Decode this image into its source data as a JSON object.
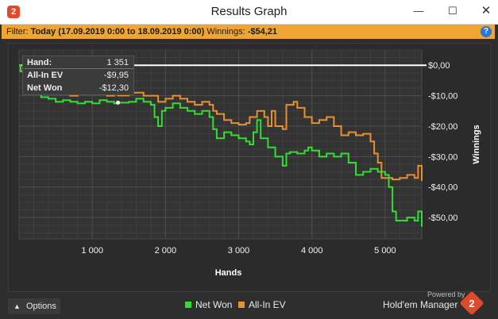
{
  "window": {
    "title": "Results Graph",
    "app_icon_glyph": "2",
    "controls": {
      "minimize": "—",
      "maximize": "☐",
      "close": "✕"
    }
  },
  "filter_bar": {
    "filter_label": "Filter:",
    "filter_value": "Today (17.09.2019 0:00 to 18.09.2019 0:00)",
    "winnings_label": "Winnings:",
    "winnings_value": "-$54,21",
    "help_glyph": "?"
  },
  "tooltip": {
    "hand_label": "Hand:",
    "hand_value": "1 351",
    "allin_label": "All-In EV",
    "allin_value": "-$9,95",
    "net_label": "Net Won",
    "net_value": "-$12,30"
  },
  "chart_data": {
    "type": "line",
    "xlabel": "Hands",
    "ylabel": "Winnings",
    "xlim": [
      0,
      5500
    ],
    "ylim": [
      -57,
      5
    ],
    "x_ticks": [
      1000,
      2000,
      3000,
      4000,
      5000
    ],
    "x_tick_labels": [
      "1 000",
      "2 000",
      "3 000",
      "4 000",
      "5 000"
    ],
    "y_ticks": [
      0,
      -10,
      -20,
      -30,
      -40,
      -50
    ],
    "y_tick_labels": [
      "$0,00",
      "-$10,00",
      "-$20,00",
      "-$30,00",
      "-$40,00",
      "-$50,00"
    ],
    "grid": true,
    "legend": "bottom-center",
    "series": [
      {
        "name": "Net Won",
        "color": "#33dd33",
        "points": [
          [
            0,
            0
          ],
          [
            20,
            -2
          ],
          [
            60,
            -5
          ],
          [
            100,
            -8
          ],
          [
            200,
            -9
          ],
          [
            300,
            -10.5
          ],
          [
            400,
            -11
          ],
          [
            500,
            -12
          ],
          [
            600,
            -11.5
          ],
          [
            700,
            -12
          ],
          [
            800,
            -12.5
          ],
          [
            900,
            -12
          ],
          [
            1000,
            -12.5
          ],
          [
            1100,
            -11.5
          ],
          [
            1200,
            -12
          ],
          [
            1300,
            -12.5
          ],
          [
            1351,
            -12.3
          ],
          [
            1500,
            -12
          ],
          [
            1600,
            -11
          ],
          [
            1700,
            -12
          ],
          [
            1800,
            -13
          ],
          [
            1850,
            -17
          ],
          [
            1900,
            -20
          ],
          [
            1950,
            -15
          ],
          [
            2000,
            -14
          ],
          [
            2100,
            -12.5
          ],
          [
            2200,
            -14
          ],
          [
            2300,
            -15
          ],
          [
            2400,
            -16
          ],
          [
            2500,
            -15
          ],
          [
            2600,
            -17
          ],
          [
            2650,
            -21
          ],
          [
            2700,
            -24
          ],
          [
            2800,
            -22
          ],
          [
            2900,
            -23
          ],
          [
            3000,
            -24
          ],
          [
            3100,
            -25
          ],
          [
            3150,
            -26
          ],
          [
            3200,
            -22
          ],
          [
            3250,
            -18
          ],
          [
            3300,
            -24
          ],
          [
            3400,
            -27
          ],
          [
            3500,
            -30
          ],
          [
            3600,
            -33
          ],
          [
            3650,
            -29
          ],
          [
            3700,
            -28.5
          ],
          [
            3800,
            -29
          ],
          [
            3900,
            -28
          ],
          [
            3950,
            -27
          ],
          [
            4000,
            -28
          ],
          [
            4100,
            -30
          ],
          [
            4200,
            -29
          ],
          [
            4300,
            -30
          ],
          [
            4400,
            -29
          ],
          [
            4500,
            -32
          ],
          [
            4600,
            -36
          ],
          [
            4700,
            -35
          ],
          [
            4800,
            -34
          ],
          [
            4900,
            -35
          ],
          [
            5000,
            -36
          ],
          [
            5050,
            -40
          ],
          [
            5100,
            -48
          ],
          [
            5150,
            -51
          ],
          [
            5200,
            -51
          ],
          [
            5300,
            -50
          ],
          [
            5400,
            -51
          ],
          [
            5450,
            -48
          ],
          [
            5500,
            -53
          ]
        ]
      },
      {
        "name": "All-In EV",
        "color": "#e8902f",
        "points": [
          [
            0,
            0
          ],
          [
            20,
            -2
          ],
          [
            60,
            -5
          ],
          [
            100,
            -7
          ],
          [
            200,
            -8
          ],
          [
            300,
            -9
          ],
          [
            400,
            -9
          ],
          [
            500,
            -9.5
          ],
          [
            600,
            -9
          ],
          [
            700,
            -10
          ],
          [
            800,
            -9.5
          ],
          [
            900,
            -9
          ],
          [
            1000,
            -9.5
          ],
          [
            1100,
            -9
          ],
          [
            1200,
            -10
          ],
          [
            1300,
            -9.5
          ],
          [
            1351,
            -9.95
          ],
          [
            1500,
            -9
          ],
          [
            1600,
            -9
          ],
          [
            1700,
            -10
          ],
          [
            1800,
            -10
          ],
          [
            1900,
            -12
          ],
          [
            2000,
            -11
          ],
          [
            2100,
            -10
          ],
          [
            2200,
            -11
          ],
          [
            2300,
            -12
          ],
          [
            2400,
            -13
          ],
          [
            2500,
            -12
          ],
          [
            2600,
            -13
          ],
          [
            2650,
            -15
          ],
          [
            2700,
            -16
          ],
          [
            2800,
            -18
          ],
          [
            2900,
            -19
          ],
          [
            3000,
            -19.5
          ],
          [
            3100,
            -19
          ],
          [
            3150,
            -17
          ],
          [
            3250,
            -15
          ],
          [
            3350,
            -17
          ],
          [
            3400,
            -20
          ],
          [
            3450,
            -15
          ],
          [
            3500,
            -20
          ],
          [
            3600,
            -21
          ],
          [
            3650,
            -13
          ],
          [
            3750,
            -12
          ],
          [
            3800,
            -14
          ],
          [
            3900,
            -17
          ],
          [
            4000,
            -19
          ],
          [
            4100,
            -18
          ],
          [
            4200,
            -17
          ],
          [
            4300,
            -20
          ],
          [
            4400,
            -23
          ],
          [
            4500,
            -22
          ],
          [
            4600,
            -23
          ],
          [
            4700,
            -22.5
          ],
          [
            4800,
            -25
          ],
          [
            4850,
            -29
          ],
          [
            4900,
            -32
          ],
          [
            4950,
            -37
          ],
          [
            5000,
            -37
          ],
          [
            5100,
            -37.5
          ],
          [
            5200,
            -37
          ],
          [
            5300,
            -36
          ],
          [
            5400,
            -37
          ],
          [
            5450,
            -33
          ],
          [
            5500,
            -38
          ]
        ]
      }
    ]
  },
  "bottom": {
    "options_label": "Options",
    "options_chevron": "▲",
    "legend_net_won": "Net Won",
    "legend_allin_ev": "All-In EV",
    "powered_by": "Powered by",
    "brand_name": "Hold'em Manager",
    "brand_logo_glyph": "2"
  }
}
